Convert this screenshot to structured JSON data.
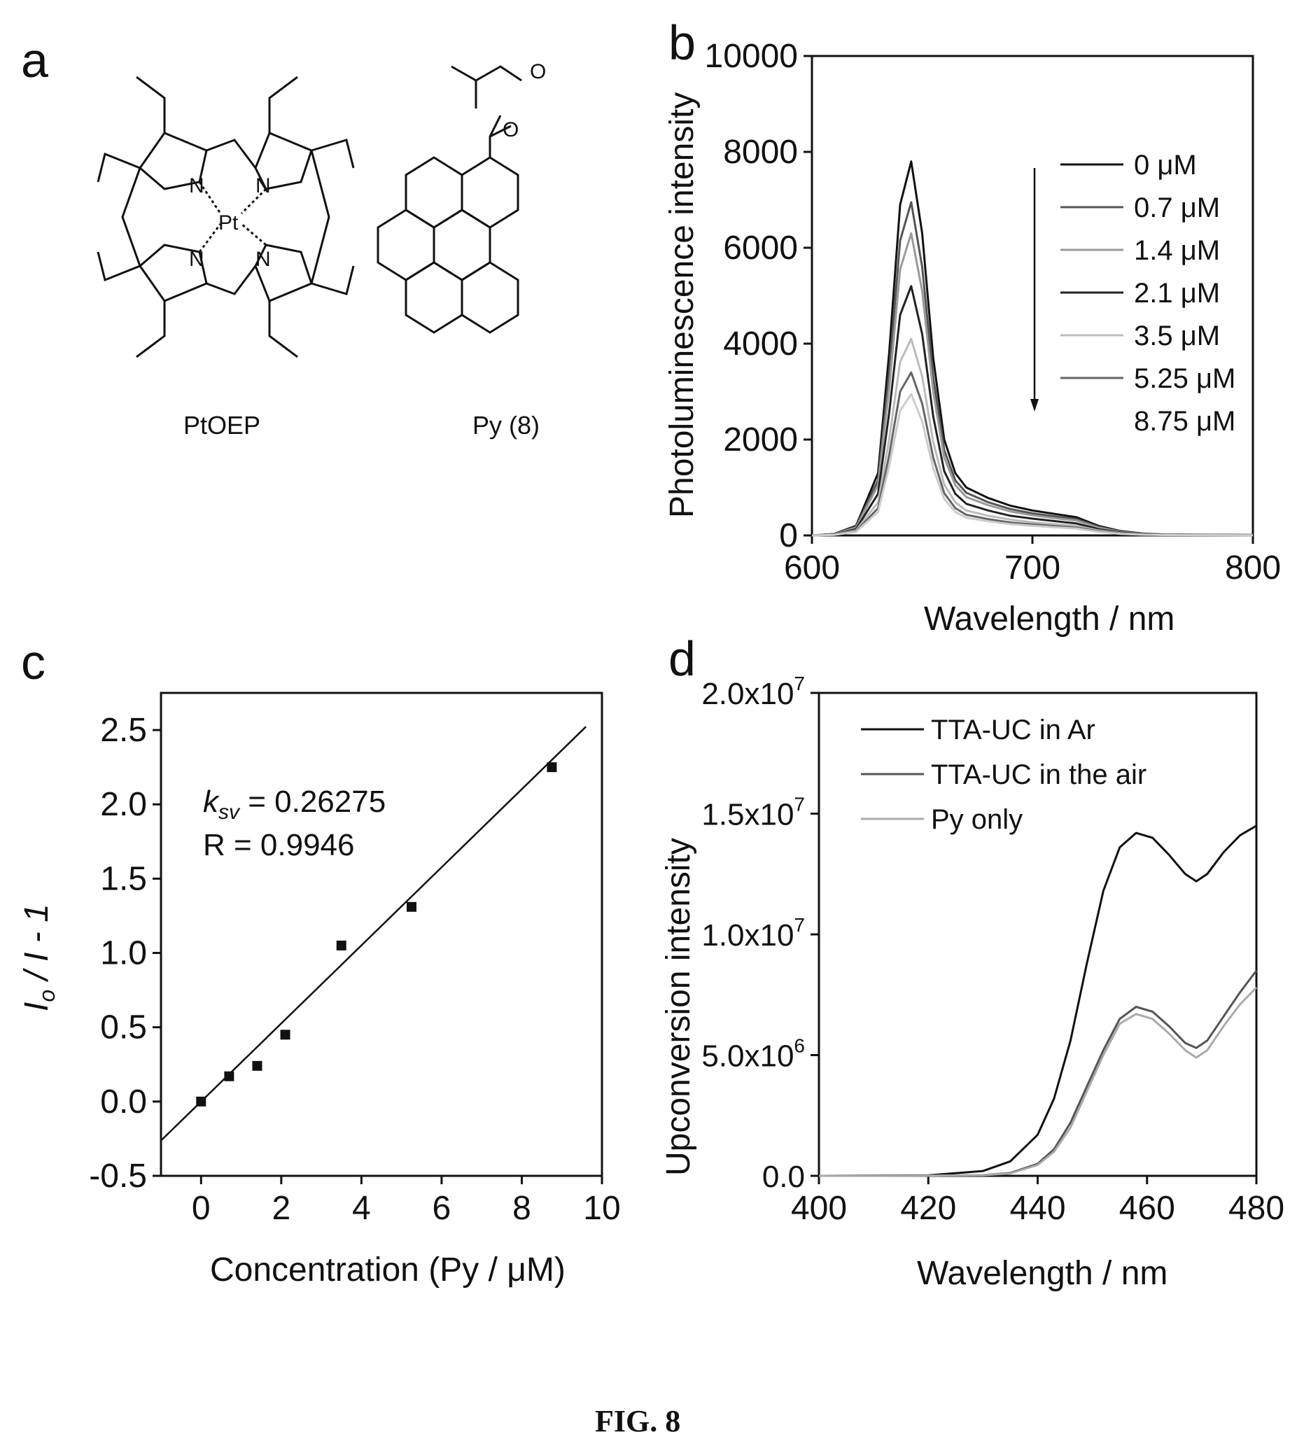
{
  "figure_caption": "FIG. 8",
  "panel_a": {
    "letter": "a",
    "compounds": [
      {
        "name": "PtOEP",
        "atoms": {
          "metal": "Pt",
          "n": "N"
        }
      },
      {
        "name": "Py (8)",
        "atoms": {
          "oxygen": "O"
        }
      }
    ]
  },
  "chart_data": [
    {
      "panel": "b",
      "type": "line",
      "xlabel": "Wavelength / nm",
      "ylabel": "Photoluminescence intensity",
      "xlim": [
        600,
        800
      ],
      "ylim": [
        0,
        10000
      ],
      "xticks": [
        "600",
        "700",
        "800"
      ],
      "yticks": [
        "0",
        "2000",
        "4000",
        "6000",
        "8000",
        "10000"
      ],
      "legend_position": "top-right",
      "x": [
        600,
        610,
        620,
        630,
        635,
        640,
        645,
        650,
        655,
        660,
        665,
        670,
        680,
        690,
        700,
        710,
        720,
        730,
        740,
        750,
        760,
        800
      ],
      "series": [
        {
          "name": "0 μM",
          "color": "#111111",
          "peak": 7800,
          "values": [
            0,
            30,
            200,
            1300,
            3800,
            6900,
            7800,
            6300,
            3700,
            2000,
            1300,
            1000,
            780,
            620,
            520,
            450,
            380,
            200,
            90,
            40,
            20,
            10
          ]
        },
        {
          "name": "0.7 μM",
          "color": "#555555",
          "peak": 6950,
          "values": [
            0,
            27,
            180,
            1150,
            3400,
            6150,
            6950,
            5600,
            3300,
            1780,
            1150,
            890,
            690,
            550,
            460,
            400,
            340,
            180,
            80,
            35,
            18,
            9
          ]
        },
        {
          "name": "1.4 μM",
          "color": "#9a9a9a",
          "peak": 6300,
          "values": [
            0,
            25,
            160,
            1050,
            3050,
            5550,
            6300,
            5100,
            3000,
            1620,
            1050,
            800,
            630,
            500,
            420,
            360,
            310,
            160,
            72,
            32,
            16,
            8
          ]
        },
        {
          "name": "2.1 μM",
          "color": "#222222",
          "peak": 5200,
          "values": [
            0,
            20,
            130,
            870,
            2550,
            4600,
            5200,
            4200,
            2480,
            1340,
            870,
            660,
            520,
            410,
            350,
            300,
            250,
            130,
            60,
            27,
            13,
            7
          ]
        },
        {
          "name": "3.5 μM",
          "color": "#bbbbbb",
          "peak": 4100,
          "values": [
            0,
            16,
            105,
            690,
            2000,
            3620,
            4100,
            3320,
            1950,
            1060,
            690,
            520,
            410,
            330,
            275,
            235,
            200,
            105,
            48,
            21,
            10,
            5
          ]
        },
        {
          "name": "5.25 μM",
          "color": "#666666",
          "peak": 3400,
          "values": [
            0,
            13,
            88,
            570,
            1670,
            3000,
            3400,
            2750,
            1620,
            880,
            570,
            430,
            340,
            270,
            230,
            195,
            165,
            88,
            40,
            17,
            8,
            4
          ]
        },
        {
          "name": "8.75 μM",
          "color": "#cccccc",
          "peak": 2950,
          "values": [
            0,
            11,
            75,
            490,
            1440,
            2600,
            2950,
            2380,
            1400,
            760,
            490,
            370,
            295,
            235,
            200,
            170,
            145,
            75,
            34,
            15,
            7,
            3
          ]
        }
      ]
    },
    {
      "panel": "c",
      "type": "scatter",
      "xlabel": "Concentration (Py / μM)",
      "ylabel": "I",
      "ylabel_sub": "o",
      "ylabel_rest": " / I - 1",
      "xlim": [
        -1,
        10
      ],
      "ylim": [
        -0.5,
        2.75
      ],
      "xticks": [
        "0",
        "2",
        "4",
        "6",
        "8",
        "10"
      ],
      "yticks": [
        "-0.5",
        "0.0",
        "0.5",
        "1.0",
        "1.5",
        "2.0",
        "2.5"
      ],
      "points": [
        {
          "x": 0,
          "y": 0.0
        },
        {
          "x": 0.7,
          "y": 0.17
        },
        {
          "x": 1.4,
          "y": 0.24
        },
        {
          "x": 2.1,
          "y": 0.45
        },
        {
          "x": 3.5,
          "y": 1.05
        },
        {
          "x": 5.25,
          "y": 1.31
        },
        {
          "x": 8.75,
          "y": 2.25
        }
      ],
      "fit": {
        "slope": 0.26275,
        "intercept": 0.0,
        "x_range": [
          -1,
          9.6
        ]
      },
      "annotation": {
        "k_symbol": "k",
        "k_sub": "sv",
        "k_value": " = 0.26275",
        "r_text": "R = 0.9946"
      }
    },
    {
      "panel": "d",
      "type": "line",
      "xlabel": "Wavelength / nm",
      "ylabel": "Upconversion intensity",
      "xlim": [
        400,
        480
      ],
      "ylim": [
        0,
        20000000
      ],
      "xticks": [
        "400",
        "420",
        "440",
        "460",
        "480"
      ],
      "yticks": [
        {
          "mant": "0.0",
          "exp": ""
        },
        {
          "mant": "5.0x10",
          "exp": "6"
        },
        {
          "mant": "1.0x10",
          "exp": "7"
        },
        {
          "mant": "1.5x10",
          "exp": "7"
        },
        {
          "mant": "2.0x10",
          "exp": "7"
        }
      ],
      "legend_position": "top-left",
      "x": [
        400,
        420,
        430,
        435,
        440,
        443,
        446,
        449,
        452,
        455,
        458,
        461,
        464,
        467,
        469,
        471,
        474,
        477,
        480
      ],
      "series": [
        {
          "name": "TTA-UC in Ar",
          "color": "#111111",
          "values": [
            0,
            20000,
            200000,
            600000,
            1700000,
            3200000,
            5600000,
            8800000,
            11800000,
            13600000,
            14200000,
            14000000,
            13300000,
            12500000,
            12200000,
            12500000,
            13400000,
            14100000,
            14500000
          ]
        },
        {
          "name": "TTA-UC in the air",
          "color": "#555555",
          "values": [
            0,
            5000,
            30000,
            120000,
            500000,
            1100000,
            2200000,
            3700000,
            5200000,
            6500000,
            7000000,
            6800000,
            6200000,
            5500000,
            5300000,
            5600000,
            6600000,
            7600000,
            8500000
          ]
        },
        {
          "name": "Py only",
          "color": "#aaaaaa",
          "values": [
            0,
            5000,
            25000,
            100000,
            450000,
            1000000,
            2000000,
            3500000,
            5000000,
            6300000,
            6700000,
            6500000,
            5900000,
            5200000,
            4900000,
            5200000,
            6200000,
            7100000,
            7800000
          ]
        }
      ]
    }
  ]
}
